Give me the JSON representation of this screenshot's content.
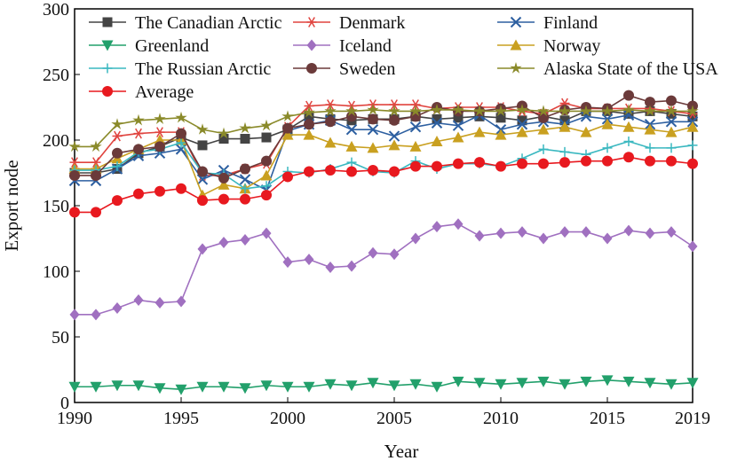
{
  "chart_data": {
    "type": "line",
    "title": "",
    "xlabel": "Year",
    "ylabel": "Export node",
    "xlim": [
      1990,
      2019
    ],
    "ylim": [
      0,
      300
    ],
    "xticks": [
      "1990",
      "1995",
      "2000",
      "2005",
      "2010",
      "2015",
      "2019"
    ],
    "yticks": [
      "0",
      "50",
      "100",
      "150",
      "200",
      "250",
      "300"
    ],
    "grid": false,
    "legend": "top-left inside",
    "x": [
      1990,
      1991,
      1992,
      1993,
      1994,
      1995,
      1996,
      1997,
      1998,
      1999,
      2000,
      2001,
      2002,
      2003,
      2004,
      2005,
      2006,
      2007,
      2008,
      2009,
      2010,
      2011,
      2012,
      2013,
      2014,
      2015,
      2016,
      2017,
      2018,
      2019
    ],
    "series": [
      {
        "name": "The Canadian Arctic",
        "color": "#444444",
        "marker": "square",
        "values": [
          175,
          175,
          178,
          190,
          195,
          202,
          196,
          201,
          201,
          202,
          208,
          218,
          216,
          215,
          216,
          216,
          218,
          216,
          217,
          218,
          217,
          215,
          218,
          215,
          222,
          222,
          220,
          222,
          220,
          218
        ]
      },
      {
        "name": "Denmark",
        "color": "#e0443f",
        "marker": "asterisk",
        "values": [
          183,
          183,
          203,
          205,
          206,
          206,
          173,
          173,
          178,
          182,
          210,
          226,
          227,
          226,
          227,
          227,
          227,
          224,
          225,
          225,
          225,
          222,
          220,
          228,
          224,
          224,
          224,
          224,
          222,
          220
        ]
      },
      {
        "name": "Finland",
        "color": "#2d5fa0",
        "marker": "x",
        "values": [
          169,
          169,
          178,
          188,
          190,
          193,
          170,
          177,
          170,
          162,
          207,
          212,
          215,
          208,
          208,
          203,
          210,
          213,
          211,
          219,
          208,
          212,
          214,
          212,
          218,
          216,
          219,
          212,
          214,
          214
        ]
      },
      {
        "name": "Greenland",
        "color": "#22a06b",
        "marker": "triangle-down",
        "values": [
          12,
          12,
          13,
          13,
          11,
          10,
          12,
          12,
          11,
          13,
          12,
          12,
          14,
          13,
          15,
          13,
          14,
          12,
          16,
          15,
          14,
          15,
          16,
          14,
          16,
          17,
          16,
          15,
          14,
          15
        ]
      },
      {
        "name": "Iceland",
        "color": "#a070c0",
        "marker": "diamond",
        "values": [
          67,
          67,
          72,
          78,
          76,
          77,
          117,
          122,
          124,
          129,
          107,
          109,
          103,
          104,
          114,
          113,
          125,
          134,
          136,
          127,
          129,
          130,
          125,
          130,
          130,
          125,
          131,
          129,
          130,
          119
        ]
      },
      {
        "name": "Norway",
        "color": "#c9a020",
        "marker": "triangle-up",
        "values": [
          178,
          178,
          186,
          193,
          200,
          200,
          158,
          166,
          163,
          173,
          204,
          204,
          198,
          195,
          194,
          196,
          195,
          199,
          202,
          206,
          204,
          206,
          208,
          210,
          206,
          212,
          210,
          208,
          206,
          210
        ]
      },
      {
        "name": "The Russian Arctic",
        "color": "#3ab8c0",
        "marker": "plus",
        "values": [
          177,
          177,
          180,
          191,
          193,
          198,
          175,
          174,
          163,
          165,
          176,
          175,
          178,
          183,
          176,
          175,
          184,
          178,
          182,
          182,
          180,
          186,
          193,
          191,
          189,
          194,
          199,
          194,
          194,
          196
        ]
      },
      {
        "name": "Sweden",
        "color": "#6b3a3a",
        "marker": "circle",
        "values": [
          173,
          173,
          190,
          193,
          195,
          205,
          176,
          171,
          178,
          184,
          209,
          212,
          214,
          218,
          216,
          215,
          218,
          225,
          222,
          222,
          224,
          226,
          217,
          223,
          225,
          224,
          234,
          229,
          230,
          226
        ]
      },
      {
        "name": "Alaska State of the USA",
        "color": "#8a8a2a",
        "marker": "star",
        "values": [
          195,
          195,
          212,
          215,
          216,
          217,
          208,
          205,
          209,
          211,
          218,
          221,
          222,
          222,
          223,
          222,
          222,
          223,
          223,
          222,
          222,
          223,
          222,
          222,
          222,
          222,
          223,
          222,
          222,
          222
        ]
      },
      {
        "name": "Average",
        "color": "#e8191f",
        "marker": "circle",
        "values": [
          145,
          145,
          154,
          159,
          161,
          163,
          154,
          155,
          155,
          158,
          172,
          176,
          177,
          176,
          177,
          176,
          180,
          180,
          182,
          183,
          180,
          182,
          182,
          183,
          184,
          184,
          187,
          184,
          184,
          182
        ]
      }
    ]
  }
}
